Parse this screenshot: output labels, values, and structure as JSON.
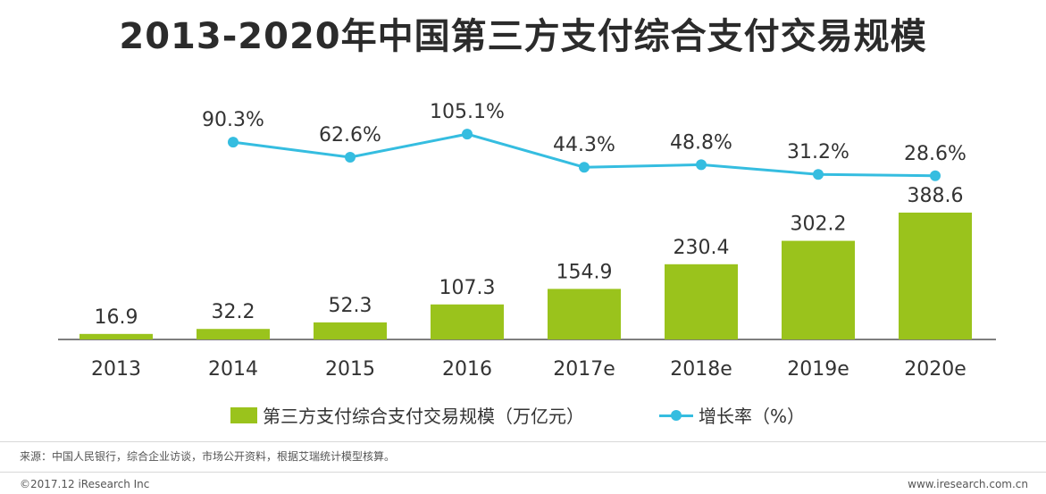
{
  "title": "2013-2020年中国第三方支付综合支付交易规模",
  "colors": {
    "bar": "#9ac31c",
    "line": "#35bde0",
    "axis": "#555555",
    "text": "#333333"
  },
  "chart_data": {
    "type": "bar",
    "categories": [
      "2013",
      "2014",
      "2015",
      "2016",
      "2017e",
      "2018e",
      "2019e",
      "2020e"
    ],
    "series": [
      {
        "name": "第三方支付综合支付交易规模（万亿元）",
        "type": "bar",
        "values": [
          16.9,
          32.2,
          52.3,
          107.3,
          154.9,
          230.4,
          302.2,
          388.6
        ],
        "labels": [
          "16.9",
          "32.2",
          "52.3",
          "107.3",
          "154.9",
          "230.4",
          "302.2",
          "388.6"
        ]
      },
      {
        "name": "增长率（%）",
        "type": "line",
        "values": [
          null,
          90.3,
          62.6,
          105.1,
          44.3,
          48.8,
          31.2,
          28.6
        ],
        "labels": [
          "",
          "90.3%",
          "62.6%",
          "105.1%",
          "44.3%",
          "48.8%",
          "31.2%",
          "28.6%"
        ]
      }
    ],
    "legend_position": "bottom",
    "grid": false
  },
  "legend": {
    "bar_label": "第三方支付综合支付交易规模（万亿元）",
    "line_label": "增长率（%）"
  },
  "footer": {
    "source": "来源：中国人民银行，综合企业访谈，市场公开资料，根据艾瑞统计模型核算。",
    "copyright": "©2017.12 iResearch Inc",
    "url": "www.iresearch.com.cn"
  }
}
